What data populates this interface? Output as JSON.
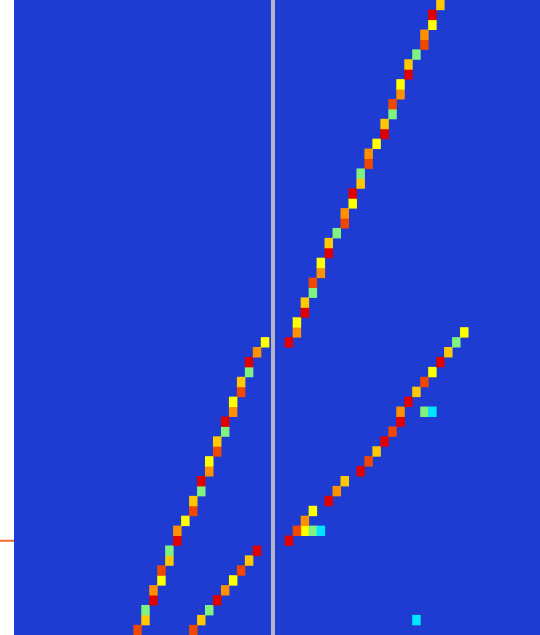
{
  "chart_data": {
    "type": "heatmap",
    "tick_labels": false,
    "grid": false,
    "xlim": [
      0,
      65
    ],
    "ylim": [
      0,
      63
    ],
    "colorbar": {
      "range": [
        0,
        10
      ],
      "colors": [
        "#1e3cd2",
        "#0080ff",
        "#00e5ff",
        "#ffff00",
        "#ff9000",
        "#e00000"
      ]
    },
    "center_line": {
      "x": 32,
      "color": "#b4b4c4"
    },
    "pointer": {
      "row": 54,
      "color": "#f26b2b"
    },
    "tracks": [
      [
        [
          34,
          34,
          10
        ],
        [
          35,
          33,
          8
        ],
        [
          35,
          32,
          6
        ],
        [
          36,
          31,
          10
        ],
        [
          36,
          30,
          7
        ],
        [
          37,
          29,
          5
        ],
        [
          37,
          28,
          9
        ],
        [
          38,
          27,
          8
        ],
        [
          38,
          26,
          6
        ],
        [
          39,
          25,
          10
        ],
        [
          39,
          24,
          7
        ],
        [
          40,
          23,
          5
        ],
        [
          41,
          22,
          9
        ],
        [
          41,
          21,
          8
        ],
        [
          42,
          20,
          6
        ],
        [
          42,
          19,
          10
        ],
        [
          43,
          18,
          7
        ],
        [
          43,
          17,
          5
        ],
        [
          44,
          16,
          9
        ],
        [
          44,
          15,
          8
        ],
        [
          45,
          14,
          6
        ],
        [
          46,
          13,
          10
        ],
        [
          46,
          12,
          7
        ],
        [
          47,
          11,
          5
        ],
        [
          47,
          10,
          9
        ],
        [
          48,
          9,
          8
        ],
        [
          48,
          8,
          6
        ],
        [
          49,
          7,
          10
        ],
        [
          49,
          6,
          7
        ],
        [
          50,
          5,
          5
        ],
        [
          51,
          4,
          9
        ],
        [
          51,
          3,
          8
        ],
        [
          52,
          2,
          6
        ],
        [
          52,
          1,
          10
        ],
        [
          53,
          0,
          7
        ]
      ],
      [
        [
          34,
          54,
          10
        ],
        [
          36,
          53,
          6
        ],
        [
          37,
          53,
          5
        ],
        [
          38,
          53,
          4
        ],
        [
          35,
          53,
          9
        ],
        [
          36,
          52,
          8
        ],
        [
          37,
          51,
          6
        ],
        [
          39,
          50,
          10
        ],
        [
          40,
          49,
          8
        ],
        [
          41,
          48,
          7
        ],
        [
          43,
          47,
          10
        ],
        [
          44,
          46,
          9
        ],
        [
          45,
          45,
          7
        ],
        [
          46,
          44,
          10
        ],
        [
          47,
          43,
          9
        ],
        [
          48,
          42,
          10
        ],
        [
          48,
          41,
          8
        ],
        [
          51,
          41,
          5
        ],
        [
          52,
          41,
          4
        ],
        [
          49,
          40,
          10
        ],
        [
          50,
          39,
          7
        ],
        [
          51,
          38,
          9
        ],
        [
          52,
          37,
          6
        ],
        [
          53,
          36,
          10
        ],
        [
          54,
          35,
          7
        ],
        [
          55,
          34,
          5
        ],
        [
          56,
          33,
          6
        ]
      ],
      [
        [
          15,
          63,
          9
        ],
        [
          16,
          62,
          7
        ],
        [
          16,
          61,
          5
        ],
        [
          17,
          60,
          10
        ],
        [
          17,
          59,
          8
        ],
        [
          18,
          58,
          6
        ],
        [
          18,
          57,
          9
        ],
        [
          19,
          56,
          7
        ],
        [
          19,
          55,
          5
        ],
        [
          20,
          54,
          10
        ],
        [
          20,
          53,
          8
        ],
        [
          21,
          52,
          6
        ],
        [
          22,
          51,
          9
        ],
        [
          22,
          50,
          7
        ],
        [
          23,
          49,
          5
        ],
        [
          23,
          48,
          10
        ],
        [
          24,
          47,
          8
        ],
        [
          24,
          46,
          6
        ],
        [
          25,
          45,
          9
        ],
        [
          25,
          44,
          7
        ],
        [
          26,
          43,
          5
        ],
        [
          26,
          42,
          10
        ],
        [
          27,
          41,
          8
        ],
        [
          27,
          40,
          6
        ],
        [
          28,
          39,
          9
        ],
        [
          28,
          38,
          7
        ],
        [
          29,
          37,
          5
        ],
        [
          29,
          36,
          10
        ],
        [
          30,
          35,
          8
        ],
        [
          31,
          34,
          6
        ]
      ],
      [
        [
          22,
          63,
          9
        ],
        [
          23,
          62,
          7
        ],
        [
          24,
          61,
          5
        ],
        [
          25,
          60,
          10
        ],
        [
          26,
          59,
          8
        ],
        [
          27,
          58,
          6
        ],
        [
          28,
          57,
          9
        ],
        [
          29,
          56,
          7
        ],
        [
          30,
          55,
          10
        ]
      ],
      [
        [
          50,
          62,
          4
        ]
      ]
    ]
  }
}
